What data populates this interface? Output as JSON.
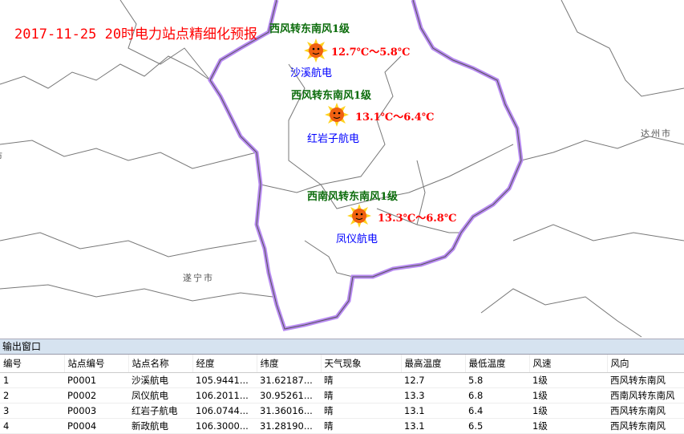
{
  "map": {
    "title": "2017-11-25 20时电力站点精细化预报",
    "cities": [
      "达州市",
      "遂宁市",
      "市"
    ],
    "stations": [
      {
        "name": "沙溪航电",
        "wind": "西风转东南风1级",
        "temp": "12.7℃～5.8℃",
        "icon": "sun-icon"
      },
      {
        "name": "红岩子航电",
        "wind": "西风转东南风1级",
        "temp": "13.1℃～6.4℃",
        "icon": "sun-icon"
      },
      {
        "name": "凤仪航电",
        "wind": "西南风转东南风1级",
        "temp": "13.3℃～6.8℃",
        "icon": "sun-icon"
      }
    ],
    "boundary_color": "#9b4dea"
  },
  "output": {
    "title": "输出窗口",
    "columns": [
      "编号",
      "站点编号",
      "站点名称",
      "经度",
      "纬度",
      "天气现象",
      "最高温度",
      "最低温度",
      "风速",
      "风向"
    ],
    "rows": [
      [
        "1",
        "P0001",
        "沙溪航电",
        "105.9441...",
        "31.62187...",
        "晴",
        "12.7",
        "5.8",
        "1级",
        "西风转东南风"
      ],
      [
        "2",
        "P0002",
        "凤仪航电",
        "106.2011...",
        "30.95261...",
        "晴",
        "13.3",
        "6.8",
        "1级",
        "西南风转东南风"
      ],
      [
        "3",
        "P0003",
        "红岩子航电",
        "106.0744...",
        "31.36016...",
        "晴",
        "13.1",
        "6.4",
        "1级",
        "西风转东南风"
      ],
      [
        "4",
        "P0004",
        "新政航电",
        "106.3000...",
        "31.28190...",
        "晴",
        "13.1",
        "6.5",
        "1级",
        "西风转东南风"
      ]
    ]
  }
}
